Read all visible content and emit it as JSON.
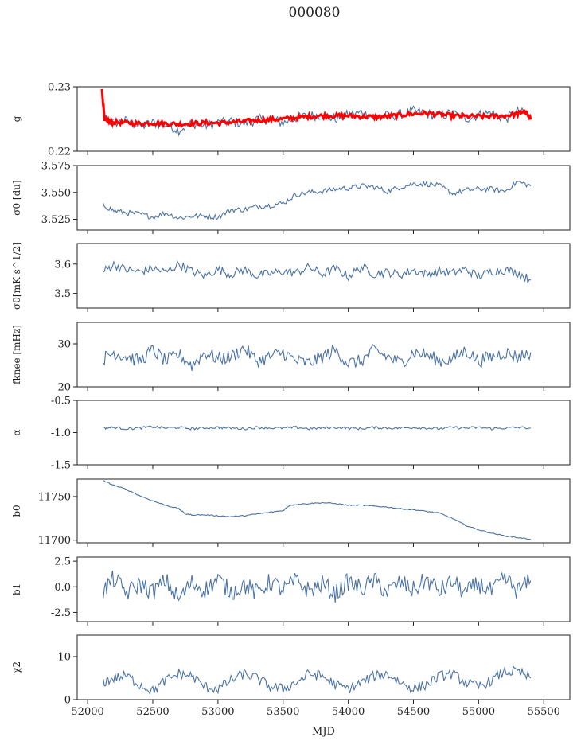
{
  "figure": {
    "title": "000080",
    "xlabel": "MJD",
    "colors": {
      "series": "#4a72a4",
      "fit": "#ff0000",
      "axis": "#222222"
    }
  },
  "chart_data": [
    {
      "type": "line",
      "panel": "g",
      "ylabel": "g",
      "ylim": [
        0.22,
        0.23
      ],
      "yticks": [
        "0.22",
        "0.23"
      ],
      "xlim": [
        51920,
        55700
      ],
      "grid": false,
      "series": [
        {
          "x": [
            52120,
            52150,
            52200,
            52300,
            52400,
            52500,
            52600,
            52700,
            52800,
            52900,
            53000,
            53100,
            53200,
            53300,
            53400,
            53500,
            53600,
            53700,
            53800,
            53900,
            54000,
            54100,
            54200,
            54300,
            54400,
            54500,
            54600,
            54700,
            54800,
            54900,
            55000,
            55100,
            55200,
            55300,
            55400
          ],
          "y": [
            0.226,
            0.2247,
            0.2244,
            0.2247,
            0.2238,
            0.2244,
            0.2241,
            0.2233,
            0.2243,
            0.224,
            0.2244,
            0.2246,
            0.2243,
            0.2249,
            0.225,
            0.2244,
            0.2252,
            0.2255,
            0.2256,
            0.225,
            0.2256,
            0.226,
            0.2253,
            0.2255,
            0.2257,
            0.2262,
            0.2258,
            0.2255,
            0.2259,
            0.2251,
            0.2256,
            0.226,
            0.225,
            0.2261,
            0.2256
          ]
        },
        {
          "x": [
            52110,
            52130,
            52150,
            52200,
            52300,
            52400,
            52500,
            52600,
            52700,
            52800,
            52900,
            53000,
            53100,
            53200,
            53300,
            53400,
            53500,
            53600,
            53700,
            53800,
            53900,
            54000,
            54100,
            54200,
            54300,
            54400,
            54500,
            54600,
            54700,
            54800,
            54900,
            55000,
            55100,
            55200,
            55300,
            55350,
            55400
          ],
          "y": [
            0.2295,
            0.225,
            0.2246,
            0.2245,
            0.2244,
            0.2243,
            0.2244,
            0.2243,
            0.2242,
            0.2243,
            0.2244,
            0.2244,
            0.2245,
            0.2246,
            0.2248,
            0.2249,
            0.225,
            0.2252,
            0.2254,
            0.2255,
            0.2255,
            0.2255,
            0.2254,
            0.2253,
            0.2254,
            0.2256,
            0.2258,
            0.2259,
            0.2257,
            0.2255,
            0.2254,
            0.2254,
            0.2254,
            0.2255,
            0.2258,
            0.2262,
            0.2249
          ]
        }
      ]
    },
    {
      "type": "line",
      "panel": "sigma0_du",
      "ylabel": "σ0 [du]",
      "ylim": [
        3.515,
        3.575
      ],
      "yticks": [
        "3.525",
        "3.550",
        "3.575"
      ],
      "xlim": [
        51920,
        55700
      ],
      "grid": false,
      "series": [
        {
          "x": [
            52120,
            52200,
            52300,
            52400,
            52500,
            52600,
            52700,
            52800,
            52900,
            53000,
            53100,
            53200,
            53300,
            53400,
            53500,
            53600,
            53700,
            53800,
            53900,
            54000,
            54100,
            54200,
            54300,
            54400,
            54500,
            54600,
            54700,
            54800,
            54900,
            55000,
            55100,
            55200,
            55300,
            55400
          ],
          "y": [
            3.538,
            3.533,
            3.531,
            3.53,
            3.527,
            3.531,
            3.526,
            3.528,
            3.528,
            3.527,
            3.534,
            3.534,
            3.537,
            3.538,
            3.54,
            3.548,
            3.55,
            3.551,
            3.553,
            3.554,
            3.556,
            3.555,
            3.551,
            3.555,
            3.558,
            3.558,
            3.556,
            3.549,
            3.552,
            3.553,
            3.553,
            3.551,
            3.56,
            3.556
          ]
        }
      ]
    },
    {
      "type": "line",
      "panel": "sigma0_mK",
      "ylabel": "σ0[mK s^1/2]",
      "ylim": [
        3.45,
        3.67
      ],
      "yticks": [
        "3.5",
        "3.6"
      ],
      "xlim": [
        51920,
        55700
      ],
      "grid": false,
      "series": [
        {
          "x": [
            52120,
            52200,
            52300,
            52400,
            52500,
            52600,
            52700,
            52800,
            52900,
            53000,
            53100,
            53200,
            53300,
            53400,
            53500,
            53600,
            53700,
            53800,
            53900,
            54000,
            54100,
            54200,
            54300,
            54400,
            54500,
            54600,
            54700,
            54800,
            54900,
            55000,
            55100,
            55200,
            55300,
            55400
          ],
          "y": [
            3.575,
            3.598,
            3.58,
            3.574,
            3.585,
            3.572,
            3.6,
            3.575,
            3.56,
            3.582,
            3.565,
            3.581,
            3.56,
            3.568,
            3.575,
            3.57,
            3.59,
            3.565,
            3.585,
            3.558,
            3.59,
            3.566,
            3.572,
            3.563,
            3.58,
            3.565,
            3.575,
            3.57,
            3.582,
            3.558,
            3.575,
            3.58,
            3.57,
            3.545
          ]
        }
      ]
    },
    {
      "type": "line",
      "panel": "fknee",
      "ylabel": "fknee [mHz]",
      "ylim": [
        20,
        35
      ],
      "yticks": [
        "20",
        "30"
      ],
      "xlim": [
        51920,
        55700
      ],
      "grid": false,
      "series": [
        {
          "x": [
            52120,
            52200,
            52300,
            52400,
            52500,
            52600,
            52700,
            52800,
            52900,
            53000,
            53100,
            53200,
            53300,
            53400,
            53500,
            53600,
            53700,
            53800,
            53900,
            54000,
            54100,
            54200,
            54300,
            54400,
            54500,
            54600,
            54700,
            54800,
            54900,
            55000,
            55100,
            55200,
            55300,
            55400
          ],
          "y": [
            26.5,
            28.0,
            27.0,
            26.0,
            28.5,
            26.0,
            27.5,
            25.0,
            28.0,
            26.5,
            27.0,
            29.0,
            26.0,
            27.0,
            28.0,
            26.0,
            25.5,
            27.0,
            28.5,
            25.5,
            26.0,
            28.5,
            27.0,
            25.5,
            28.0,
            27.5,
            26.0,
            26.5,
            28.5,
            26.0,
            27.0,
            28.0,
            27.0,
            28.0
          ]
        }
      ]
    },
    {
      "type": "line",
      "panel": "alpha",
      "ylabel": "α",
      "ylim": [
        -1.5,
        -0.5
      ],
      "yticks": [
        "-1.5",
        "-1.0",
        "-0.5"
      ],
      "xlim": [
        51920,
        55700
      ],
      "grid": false,
      "series": [
        {
          "x": [
            52120,
            52200,
            52300,
            52400,
            52500,
            52600,
            52700,
            52800,
            52900,
            53000,
            53100,
            53200,
            53300,
            53400,
            53500,
            53600,
            53700,
            53800,
            53900,
            54000,
            54100,
            54200,
            54300,
            54400,
            54500,
            54600,
            54700,
            54800,
            54900,
            55000,
            55100,
            55200,
            55300,
            55400
          ],
          "y": [
            -0.93,
            -0.92,
            -0.94,
            -0.93,
            -0.91,
            -0.93,
            -0.92,
            -0.94,
            -0.93,
            -0.92,
            -0.93,
            -0.94,
            -0.92,
            -0.93,
            -0.93,
            -0.92,
            -0.94,
            -0.93,
            -0.92,
            -0.93,
            -0.94,
            -0.92,
            -0.93,
            -0.93,
            -0.92,
            -0.93,
            -0.94,
            -0.92,
            -0.93,
            -0.92,
            -0.94,
            -0.93,
            -0.92,
            -0.93
          ]
        }
      ]
    },
    {
      "type": "line",
      "panel": "b0",
      "ylabel": "b0",
      "ylim": [
        11697,
        11770
      ],
      "yticks": [
        "11700",
        "11750"
      ],
      "xlim": [
        51920,
        55700
      ],
      "grid": false,
      "series": [
        {
          "x": [
            52120,
            52200,
            52300,
            52400,
            52500,
            52600,
            52700,
            52750,
            52800,
            52900,
            53000,
            53100,
            53200,
            53300,
            53400,
            53500,
            53550,
            53600,
            53700,
            53800,
            53900,
            54000,
            54100,
            54200,
            54300,
            54400,
            54500,
            54600,
            54700,
            54800,
            54900,
            55000,
            55100,
            55200,
            55300,
            55400
          ],
          "y": [
            11768,
            11763,
            11758,
            11751,
            11745,
            11740,
            11736,
            11730,
            11729,
            11729,
            11728,
            11727,
            11728,
            11730,
            11732,
            11734,
            11740,
            11741,
            11742,
            11743,
            11742,
            11740,
            11740,
            11739,
            11738,
            11736,
            11735,
            11733,
            11731,
            11725,
            11717,
            11712,
            11708,
            11705,
            11703,
            11701
          ]
        }
      ]
    },
    {
      "type": "line",
      "panel": "b1",
      "ylabel": "b1",
      "ylim": [
        -3.4,
        2.9
      ],
      "yticks": [
        "-2.5",
        "0.0",
        "2.5"
      ],
      "xlim": [
        51920,
        55700
      ],
      "grid": false,
      "series": [
        {
          "x": [
            52120,
            52200,
            52300,
            52400,
            52500,
            52600,
            52700,
            52800,
            52900,
            53000,
            53100,
            53200,
            53300,
            53400,
            53500,
            53600,
            53700,
            53800,
            53900,
            54000,
            54100,
            54200,
            54300,
            54400,
            54500,
            54600,
            54700,
            54800,
            54900,
            55000,
            55100,
            55200,
            55300,
            55400
          ],
          "y": [
            -0.4,
            0.8,
            -0.6,
            0.3,
            -0.5,
            0.6,
            -1.2,
            0.4,
            -0.3,
            0.7,
            -0.5,
            0.2,
            -0.6,
            0.5,
            -0.3,
            0.6,
            -0.4,
            0.3,
            -0.7,
            0.5,
            -0.2,
            0.6,
            -0.5,
            0.4,
            -0.3,
            0.7,
            -0.4,
            0.5,
            -0.6,
            0.3,
            -0.5,
            0.8,
            -0.4,
            0.6
          ]
        }
      ]
    },
    {
      "type": "line",
      "panel": "chi2",
      "ylabel": "χ2",
      "ylim": [
        0,
        15
      ],
      "yticks": [
        "0",
        "10"
      ],
      "xlim": [
        51920,
        55700
      ],
      "grid": false,
      "series": [
        {
          "x": [
            52120,
            52200,
            52300,
            52400,
            52500,
            52600,
            52700,
            52800,
            52900,
            53000,
            53100,
            53200,
            53300,
            53400,
            53500,
            53600,
            53700,
            53800,
            53900,
            54000,
            54100,
            54200,
            54300,
            54400,
            54500,
            54600,
            54700,
            54800,
            54900,
            55000,
            55100,
            55200,
            55300,
            55400
          ],
          "y": [
            4.0,
            5.0,
            5.5,
            3.5,
            2.0,
            4.5,
            6.0,
            5.5,
            3.0,
            2.5,
            4.5,
            6.0,
            5.0,
            3.0,
            2.5,
            4.0,
            6.0,
            5.5,
            3.5,
            2.5,
            4.0,
            5.5,
            6.0,
            4.0,
            2.5,
            3.5,
            5.5,
            6.0,
            4.0,
            3.0,
            4.5,
            6.5,
            6.5,
            5.0
          ]
        }
      ]
    }
  ],
  "xaxis": {
    "ticks": [
      52000,
      52500,
      53000,
      53500,
      54000,
      54500,
      55000,
      55500
    ],
    "tick_labels": [
      "52000",
      "52500",
      "53000",
      "53500",
      "54000",
      "54500",
      "55000",
      "55500"
    ]
  }
}
